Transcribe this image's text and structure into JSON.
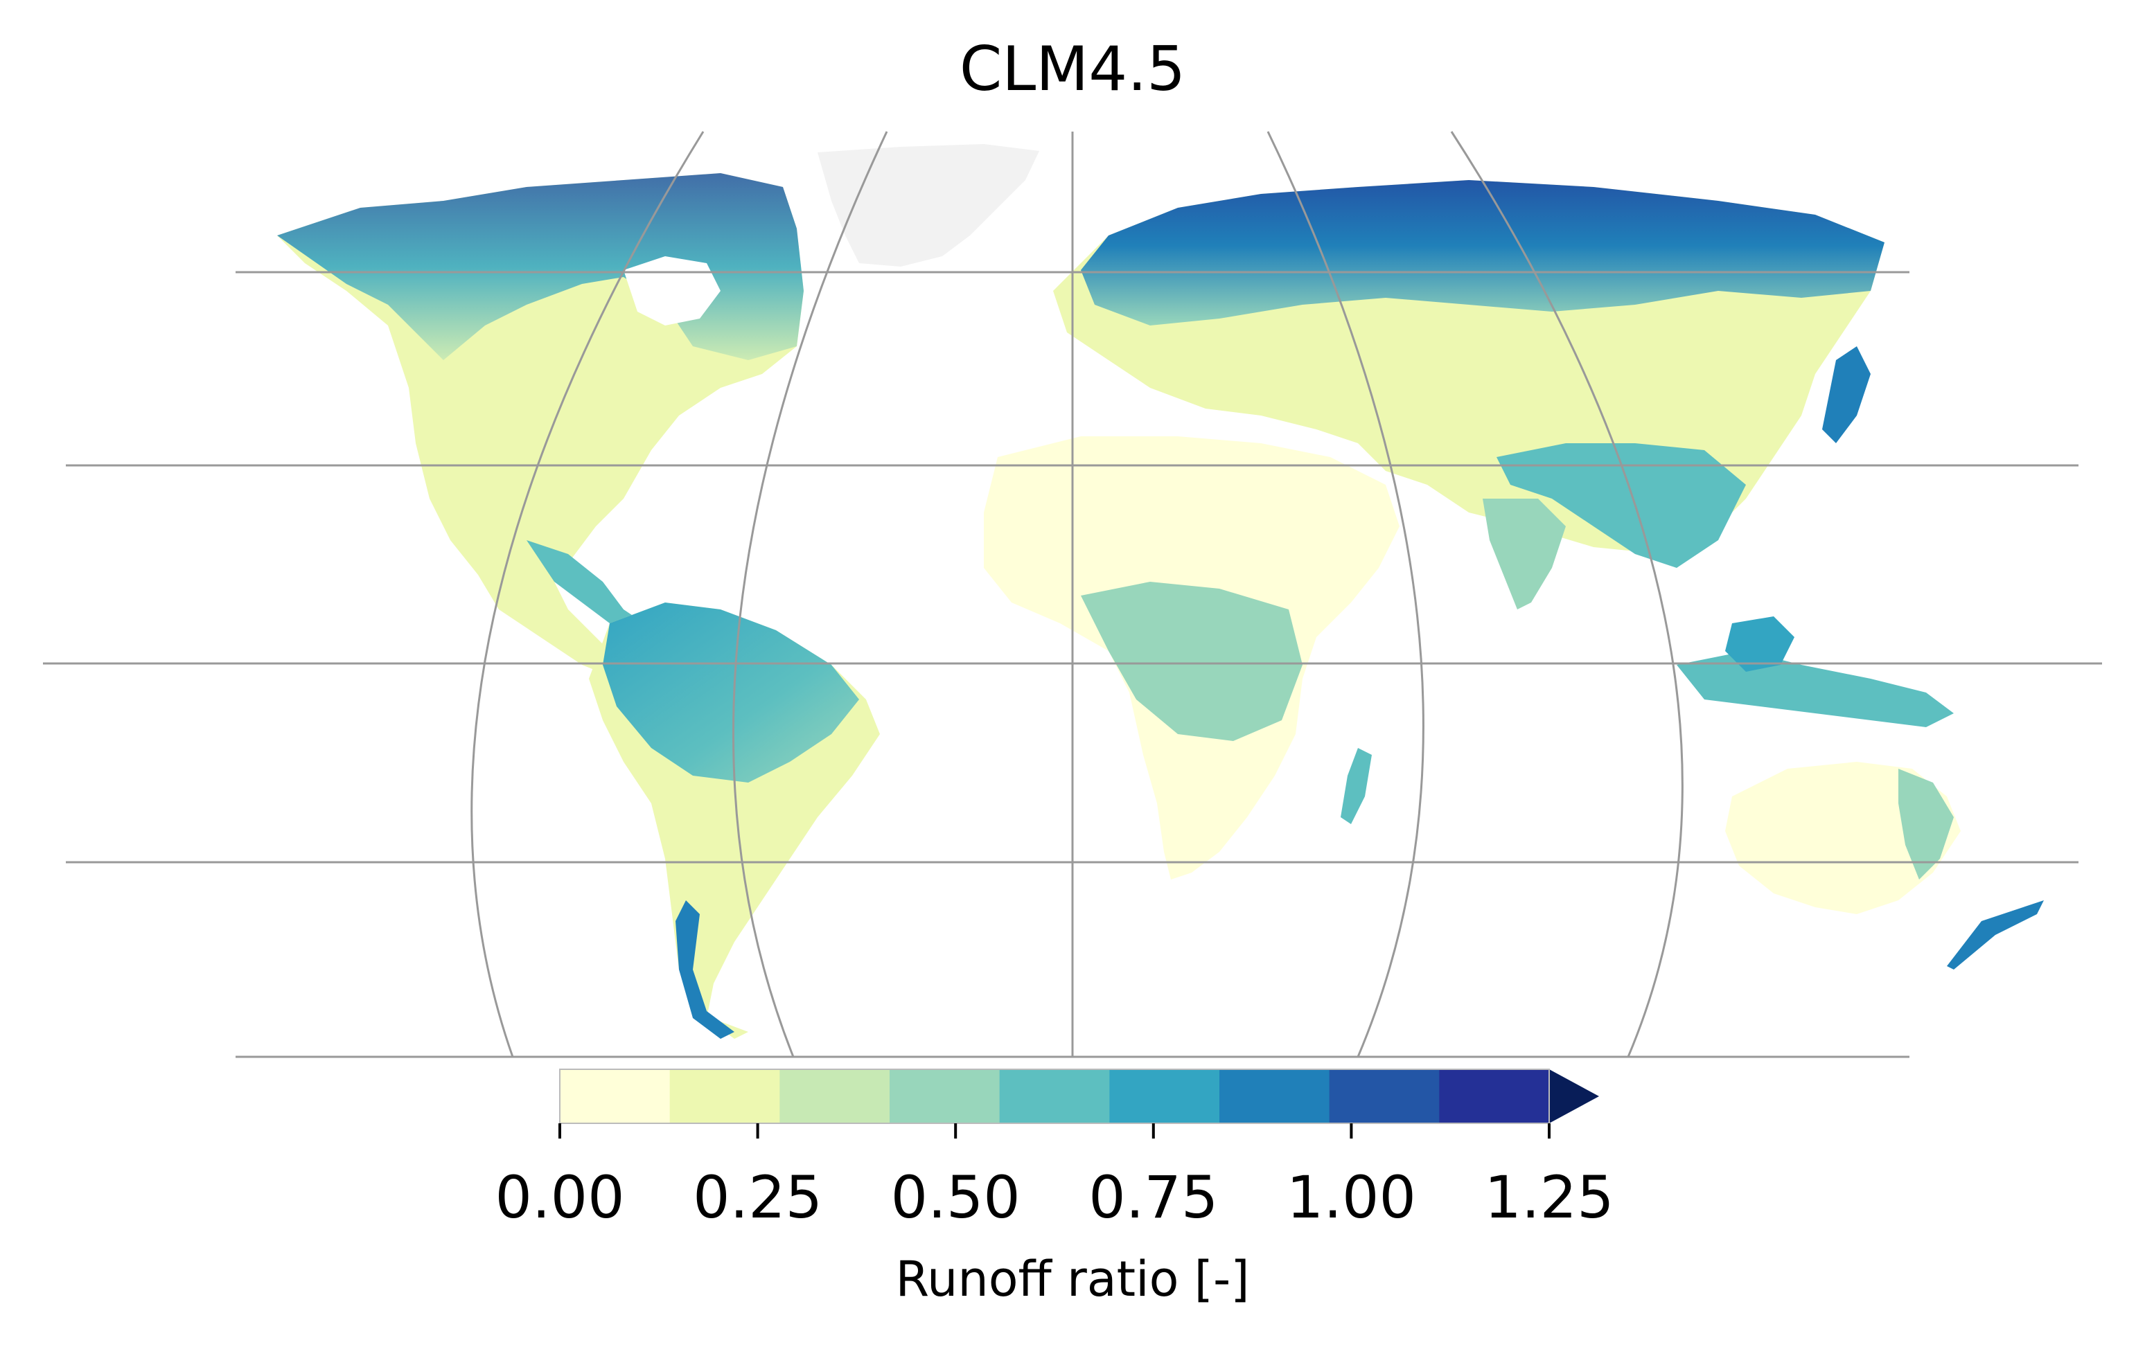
{
  "title": "CLM4.5",
  "colorbar": {
    "label": "Runoff ratio [-]",
    "ticks": [
      "0.00",
      "0.25",
      "0.50",
      "0.75",
      "1.00",
      "1.25"
    ],
    "min": 0.0,
    "max": 1.25,
    "step": 0.125,
    "extend": "max",
    "colors": [
      "#ffffd9",
      "#edf8b1",
      "#c7e9b4",
      "#98d6bb",
      "#5dbfc0",
      "#33a5c2",
      "#2080b9",
      "#2356a6",
      "#243096",
      "#081d58"
    ]
  },
  "map": {
    "projection": "Eckert-like pseudocylindrical, global",
    "land_color_min": "#ffffd9",
    "greenland_color": "#f2f2f2",
    "gridline_color": "#999999"
  }
}
